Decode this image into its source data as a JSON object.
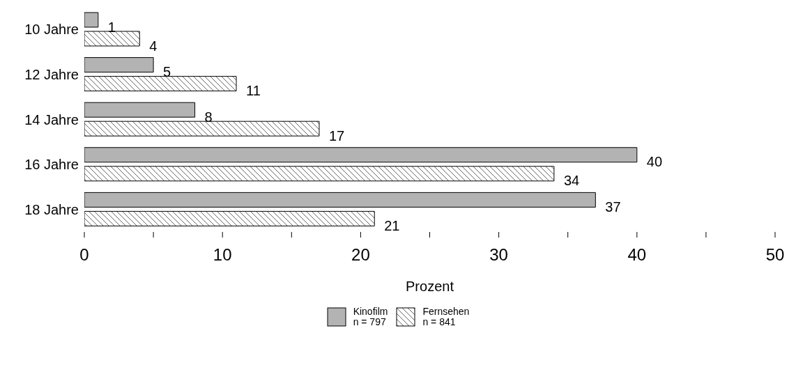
{
  "chart_data": {
    "type": "bar",
    "orientation": "horizontal",
    "xlabel": "Prozent",
    "categories": [
      "10 Jahre",
      "12 Jahre",
      "14 Jahre",
      "16 Jahre",
      "18 Jahre"
    ],
    "series": [
      {
        "name": "Kinofilm\nn = 797",
        "color": "#b3b3b3",
        "values": [
          1,
          5,
          8,
          40,
          37
        ]
      },
      {
        "name": "Fernsehen\nn = 841",
        "color": "#000000",
        "values": [
          4,
          11,
          17,
          34,
          21
        ]
      }
    ],
    "xlim": [
      0,
      50
    ],
    "xticks": [
      0,
      {
        "value": 5,
        "label": null
      },
      10,
      {
        "value": 15,
        "label": null
      },
      20,
      {
        "value": 25,
        "label": null
      },
      30,
      {
        "value": 35,
        "label": null
      },
      40,
      {
        "value": 45,
        "label": null
      },
      50
    ],
    "data_labels": true,
    "grid": false,
    "legend": "bottom"
  }
}
